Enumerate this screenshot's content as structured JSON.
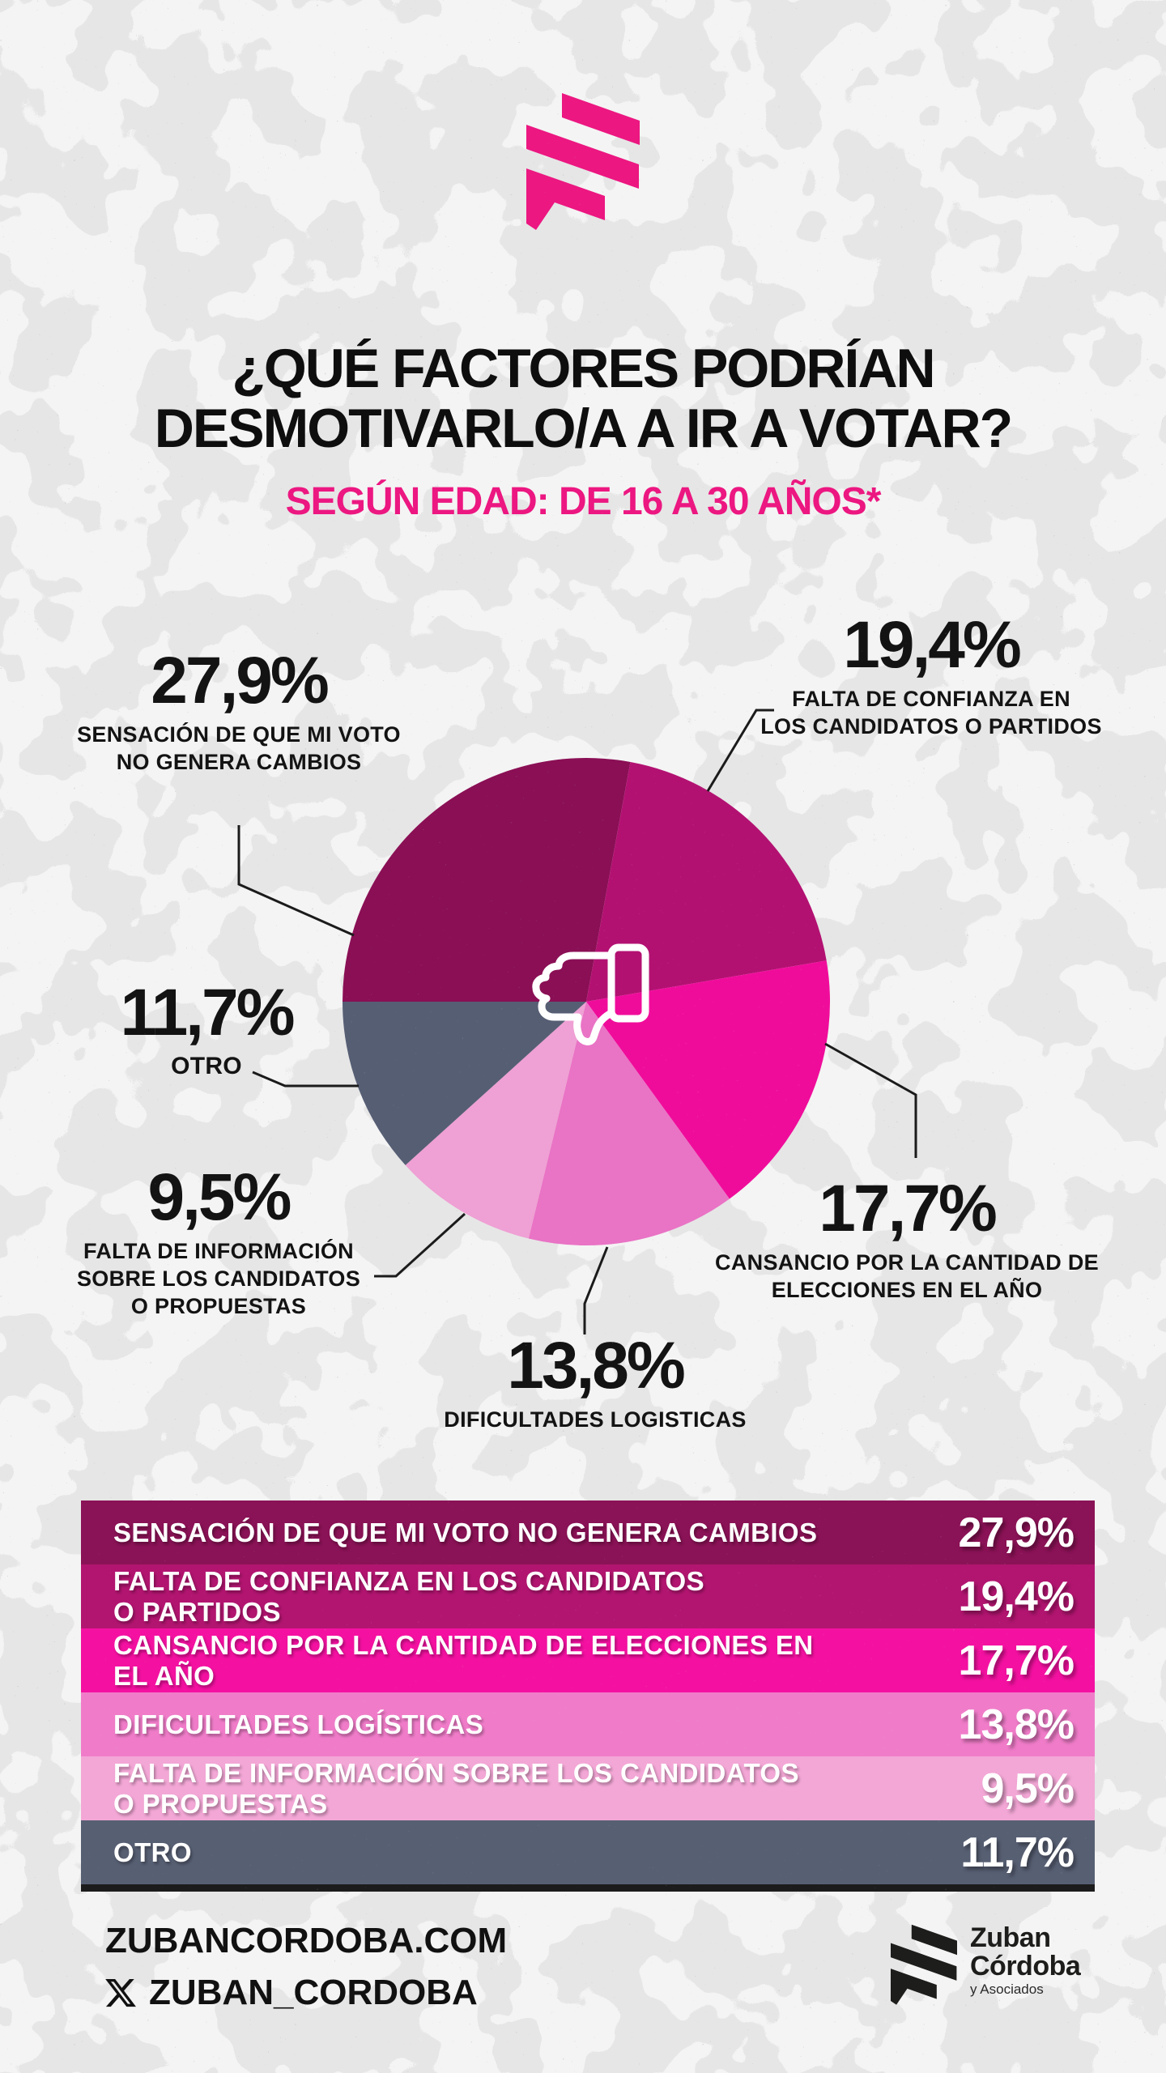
{
  "brand": {
    "accent_pink": "#ec1781",
    "logo_icon": "three-stripes-flag-icon"
  },
  "header": {
    "title_line1": "¿QUÉ FACTORES PODRÍAN",
    "title_line2": "DESMOTIVARLO/A A IR A VOTAR?",
    "subtitle": "SEGÚN EDAD: DE 16 A 30 AÑOS*",
    "subtitle_color": "#ec1781"
  },
  "chart_data": {
    "type": "pie",
    "title": "¿Qué factores podrían desmotivarlo/a a ir a votar? Según edad: de 16 a 30 años",
    "center_icon": "thumbs-down-icon",
    "start_bearing_deg": 270,
    "direction": "clockwise",
    "legend_position": "around-pie-callouts",
    "slices": [
      {
        "label": "Sensación de que mi voto no genera cambios",
        "value": 27.9,
        "display": "27,9%",
        "color": "#8a0f55",
        "caption_lines": [
          "SENSACIÓN DE QUE MI VOTO",
          "NO GENERA CAMBIOS"
        ]
      },
      {
        "label": "Falta de confianza en los candidatos o partidos",
        "value": 19.4,
        "display": "19,4%",
        "color": "#b31172",
        "caption_lines": [
          "FALTA DE CONFIANZA EN",
          "LOS CANDIDATOS O PARTIDOS"
        ]
      },
      {
        "label": "Cansancio por la cantidad de elecciones en el año",
        "value": 17.7,
        "display": "17,7%",
        "color": "#f00c9b",
        "caption_lines": [
          "CANSANCIO POR LA CANTIDAD DE",
          "ELECCIONES EN EL AÑO"
        ]
      },
      {
        "label": "Dificultades logisticas",
        "value": 13.8,
        "display": "13,8%",
        "color": "#e973c5",
        "caption_lines": [
          "DIFICULTADES LOGISTICAS"
        ]
      },
      {
        "label": "Falta de información sobre los candidatos o propuestas",
        "value": 9.5,
        "display": "9,5%",
        "color": "#efa0d4",
        "caption_lines": [
          "FALTA DE INFORMACIÓN",
          "SOBRE LOS CANDIDATOS",
          "O PROPUESTAS"
        ]
      },
      {
        "label": "Otro",
        "value": 11.7,
        "display": "11,7%",
        "color": "#565e74",
        "caption_lines": [
          "OTRO"
        ]
      }
    ]
  },
  "table": {
    "rows": [
      {
        "label_lines": [
          "SENSACIÓN DE QUE MI VOTO NO GENERA CAMBIOS"
        ],
        "percent": "27,9%",
        "color": "#8a1256"
      },
      {
        "label_lines": [
          "FALTA DE CONFIANZA EN LOS CANDIDATOS",
          "O PARTIDOS"
        ],
        "percent": "19,4%",
        "color": "#b21570"
      },
      {
        "label_lines": [
          "CANSANCIO POR LA CANTIDAD DE ELECCIONES EN",
          "EL AÑO"
        ],
        "percent": "17,7%",
        "color": "#f411a1"
      },
      {
        "label_lines": [
          "DIFICULTADES LOGÍSTICAS"
        ],
        "percent": "13,8%",
        "color": "#f07cc9"
      },
      {
        "label_lines": [
          "FALTA DE INFORMACIÓN SOBRE LOS CANDIDATOS",
          "O PROPUESTAS"
        ],
        "percent": "9,5%",
        "color": "#f3a7d6"
      },
      {
        "label_lines": [
          "OTRO"
        ],
        "percent": "11,7%",
        "color": "#575f73"
      }
    ]
  },
  "footer": {
    "website": "ZUBANCORDOBA.COM",
    "x_icon": "x-logo-icon",
    "x_handle": "ZUBAN_CORDOBA",
    "logo_name_line1": "Zuban",
    "logo_name_line2": "Córdoba",
    "logo_tagline": "y Asociados"
  }
}
